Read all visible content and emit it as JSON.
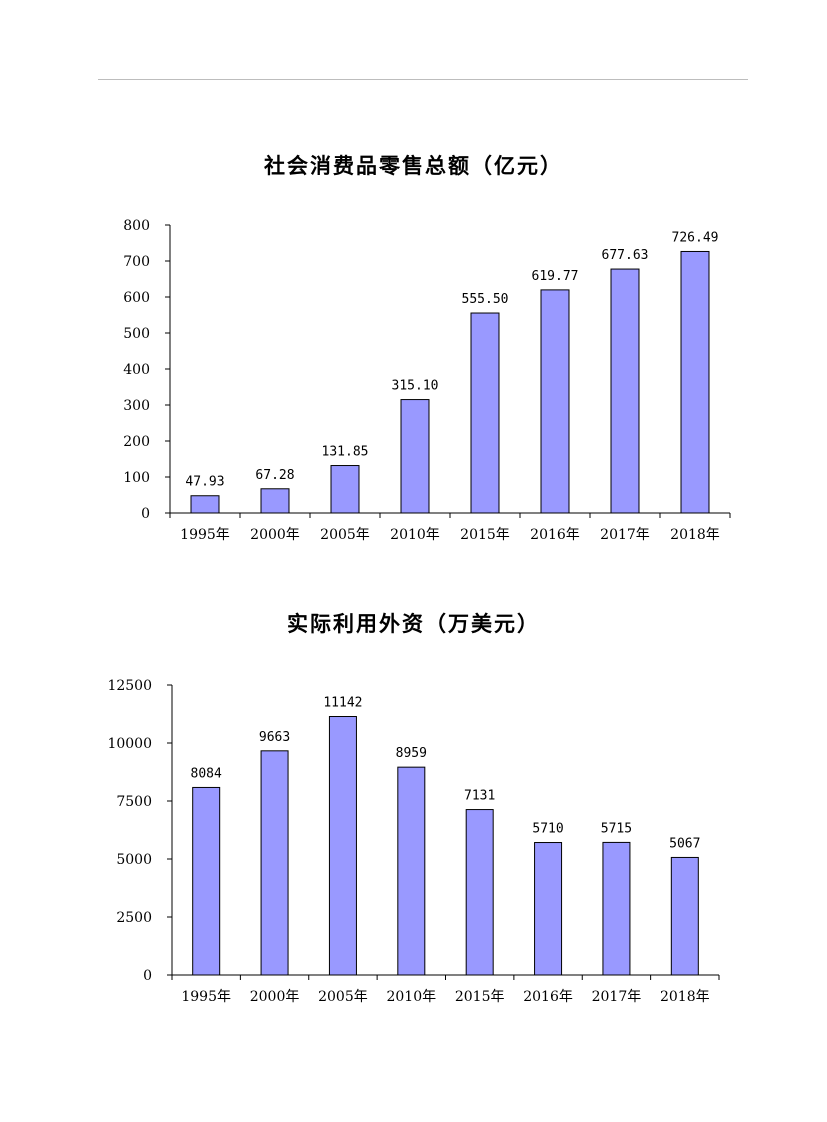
{
  "colors": {
    "bar_fill": "#9999ff",
    "bar_stroke": "#000000",
    "axis": "#000000"
  },
  "chart_data": [
    {
      "type": "bar",
      "title": "社会消费品零售总额（亿元）",
      "categories": [
        "1995年",
        "2000年",
        "2005年",
        "2010年",
        "2015年",
        "2016年",
        "2017年",
        "2018年"
      ],
      "values": [
        47.93,
        67.28,
        131.85,
        315.1,
        555.5,
        619.77,
        677.63,
        726.49
      ],
      "value_labels": [
        "47.93",
        "67.28",
        "131.85",
        "315.10",
        "555.50",
        "619.77",
        "677.63",
        "726.49"
      ],
      "yticks": [
        "0",
        "100",
        "200",
        "300",
        "400",
        "500",
        "600",
        "700",
        "800"
      ],
      "ylim": [
        0,
        800
      ],
      "xlabel": "",
      "ylabel": "",
      "grid": false,
      "legend": "none"
    },
    {
      "type": "bar",
      "title": "实际利用外资（万美元）",
      "categories": [
        "1995年",
        "2000年",
        "2005年",
        "2010年",
        "2015年",
        "2016年",
        "2017年",
        "2018年"
      ],
      "values": [
        8084,
        9663,
        11142,
        8959,
        7131,
        5710,
        5715,
        5067
      ],
      "value_labels": [
        "8084",
        "9663",
        "11142",
        "8959",
        "7131",
        "5710",
        "5715",
        "5067"
      ],
      "yticks": [
        "0",
        "2500",
        "5000",
        "7500",
        "10000",
        "12500"
      ],
      "ylim": [
        0,
        12500
      ],
      "xlabel": "",
      "ylabel": "",
      "grid": false,
      "legend": "none"
    }
  ]
}
